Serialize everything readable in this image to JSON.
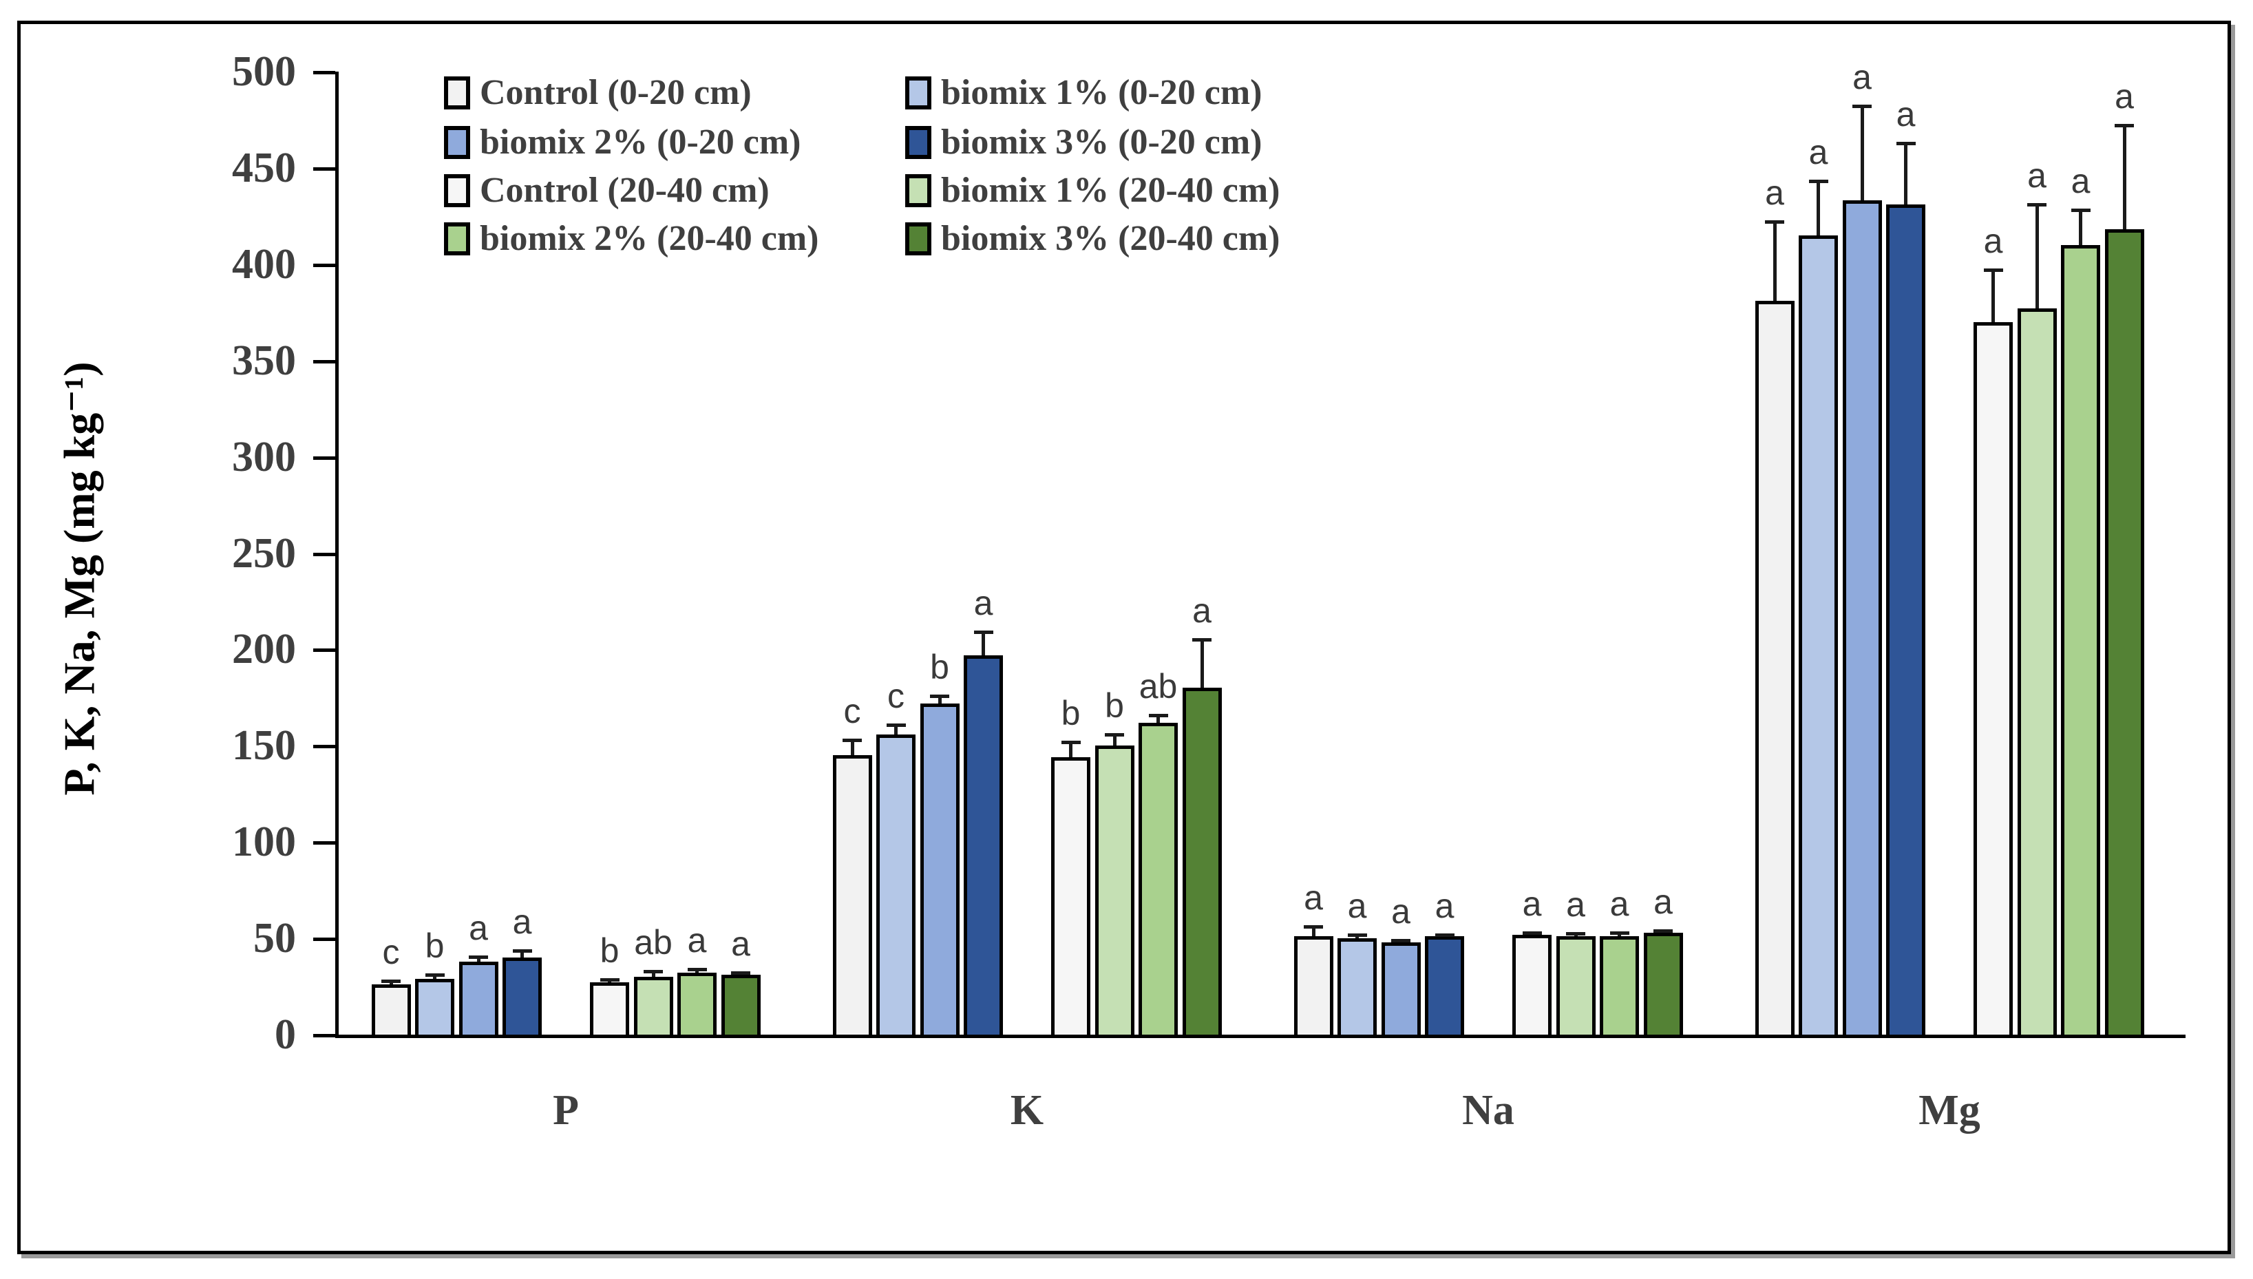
{
  "chart_data": {
    "type": "bar",
    "title": "",
    "ylabel": "P, K, Na, Mg (mg kg⁻¹)",
    "xlabel": "",
    "categories": [
      "P",
      "K",
      "Na",
      "Mg"
    ],
    "ylim": [
      0,
      500
    ],
    "yticks": [
      0,
      50,
      100,
      150,
      200,
      250,
      300,
      350,
      400,
      450,
      500
    ],
    "grid": false,
    "legend_position": "inside-top-left, 2 columns",
    "error_bars": "upward only, capped",
    "colors": {
      "bar_border": "#000000",
      "error_bar": "#1a1a1a",
      "text": "#3f3f3f",
      "background": "#ffffff"
    },
    "series": [
      {
        "name": "Control (0-20 cm)",
        "color": "#f2f2f2",
        "values": [
          26,
          145,
          51,
          381
        ],
        "errors": [
          2,
          8,
          5,
          41
        ],
        "letters": [
          "c",
          "c",
          "a",
          "a"
        ]
      },
      {
        "name": "biomix 1% (0-20 cm)",
        "color": "#b4c7e7",
        "values": [
          29,
          156,
          50,
          415
        ],
        "errors": [
          2,
          5,
          2,
          28
        ],
        "letters": [
          "b",
          "c",
          "a",
          "a"
        ]
      },
      {
        "name": "biomix 2% (0-20 cm)",
        "color": "#8faadc",
        "values": [
          38,
          172,
          48,
          433
        ],
        "errors": [
          2.5,
          4,
          1,
          49
        ],
        "letters": [
          "a",
          "b",
          "a",
          "a"
        ]
      },
      {
        "name": "biomix 3% (0-20 cm)",
        "color": "#2f5597",
        "values": [
          40,
          197,
          51,
          431
        ],
        "errors": [
          3.5,
          12,
          1,
          32
        ],
        "letters": [
          "a",
          "a",
          "a",
          "a"
        ]
      },
      {
        "name": "Control (20-40 cm)",
        "color": "#f6f6f6",
        "values": [
          27,
          144,
          52,
          370
        ],
        "errors": [
          1.5,
          8,
          1,
          27
        ],
        "letters": [
          "b",
          "b",
          "a",
          "a"
        ]
      },
      {
        "name": "biomix 1% (20-40 cm)",
        "color": "#c5e0b4",
        "values": [
          30,
          150,
          51,
          377
        ],
        "errors": [
          3,
          6,
          1.5,
          54
        ],
        "letters": [
          "ab",
          "b",
          "a",
          "a"
        ]
      },
      {
        "name": "biomix 2% (20-40 cm)",
        "color": "#a9d18e",
        "values": [
          32,
          162,
          51,
          410
        ],
        "errors": [
          2,
          4,
          2,
          18
        ],
        "letters": [
          "a",
          "ab",
          "a",
          "a"
        ]
      },
      {
        "name": "biomix 3% (20-40 cm)",
        "color": "#548235",
        "values": [
          31,
          180,
          53,
          418
        ],
        "errors": [
          1,
          25,
          1,
          54
        ],
        "letters": [
          "a",
          "a",
          "a",
          "a"
        ]
      }
    ]
  }
}
